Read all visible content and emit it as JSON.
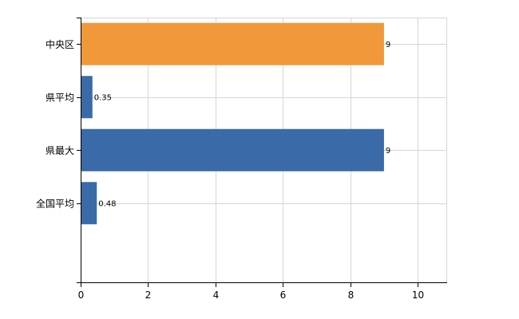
{
  "chart_data": {
    "type": "bar",
    "orientation": "horizontal",
    "categories": [
      "中央区",
      "県平均",
      "県最大",
      "全国平均"
    ],
    "values": [
      9,
      0.35,
      9,
      0.48
    ],
    "data_labels": [
      "9",
      "0.35",
      "9",
      "0.48"
    ],
    "bar_colors": [
      "#f0983a",
      "#3b6aa8",
      "#3b6aa8",
      "#3b6aa8"
    ],
    "x_ticks": [
      0,
      2,
      4,
      6,
      8,
      10
    ],
    "x_tick_labels": [
      "0",
      "2",
      "4",
      "6",
      "8",
      "10"
    ],
    "xlim": [
      0,
      10.85
    ],
    "grid": true,
    "title": "",
    "xlabel": "",
    "ylabel": ""
  }
}
